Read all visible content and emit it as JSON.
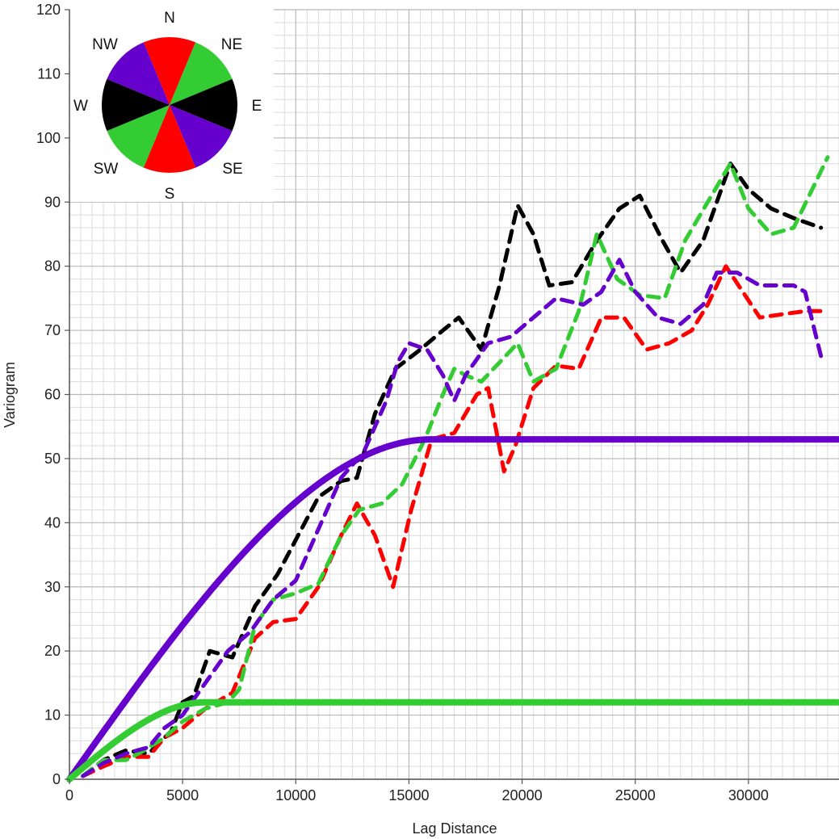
{
  "chart_data": {
    "type": "line",
    "xlabel": "Lag Distance",
    "ylabel": "Variogram",
    "xlim": [
      0,
      34000
    ],
    "ylim": [
      0,
      120
    ],
    "x_ticks": [
      "0",
      "5000",
      "10000",
      "15000",
      "20000",
      "25000",
      "30000"
    ],
    "y_ticks": [
      "0",
      "10",
      "20",
      "30",
      "40",
      "50",
      "60",
      "70",
      "80",
      "90",
      "100",
      "110",
      "120"
    ],
    "grid": true,
    "colors": {
      "black": "#000000",
      "red": "#ff0000",
      "green": "#33cc33",
      "purple": "#6600cc"
    },
    "compass": {
      "placement": "top-left",
      "labels": {
        "N": "N",
        "NE": "NE",
        "E": "E",
        "SE": "SE",
        "S": "S",
        "SW": "SW",
        "W": "W",
        "NW": "NW"
      }
    },
    "experimental_series": [
      {
        "direction": "E-W",
        "color": "#000000",
        "style": "dashed",
        "x": [
          600,
          1500,
          2500,
          3500,
          4500,
          5000,
          5500,
          6200,
          7200,
          8200,
          9200,
          10100,
          11000,
          12000,
          12700,
          13500,
          14400,
          15500,
          16500,
          17200,
          18200,
          19000,
          19800,
          20500,
          21200,
          22200,
          23300,
          24300,
          25200,
          26200,
          27000,
          28000,
          29200,
          30000,
          31000,
          32000,
          33200
        ],
        "y": [
          0.5,
          3,
          4.5,
          4,
          7.5,
          12,
          13,
          20,
          19,
          27,
          32,
          38,
          44,
          46.5,
          47,
          57,
          64,
          67,
          70,
          72,
          67,
          77,
          89.5,
          85,
          77,
          77.5,
          84,
          89,
          91,
          84,
          79,
          84,
          96,
          92,
          89,
          87.5,
          86
        ]
      },
      {
        "direction": "N-S",
        "color": "#ff0000",
        "style": "dashed",
        "x": [
          600,
          1500,
          2500,
          3500,
          4200,
          5000,
          6000,
          7200,
          8200,
          9000,
          10000,
          11000,
          12000,
          12700,
          13500,
          14300,
          15100,
          16000,
          17000,
          18000,
          18500,
          19200,
          19700,
          20500,
          21500,
          22500,
          23500,
          24500,
          25500,
          26500,
          27500,
          28200,
          29000,
          30500,
          31500,
          32500,
          33200
        ],
        "y": [
          0.5,
          2,
          3.5,
          3.5,
          6.5,
          8,
          11,
          13.5,
          22,
          24.5,
          25,
          30,
          38,
          43,
          38,
          30,
          42,
          53,
          54,
          60,
          61,
          48,
          52,
          61,
          64.5,
          64,
          72,
          72,
          67,
          68,
          70,
          74,
          80,
          72,
          72.5,
          73,
          73
        ]
      },
      {
        "direction": "NE-SW",
        "color": "#33cc33",
        "style": "dashed",
        "x": [
          600,
          1500,
          2500,
          3300,
          4200,
          5000,
          6000,
          7000,
          7500,
          8200,
          9000,
          10000,
          11000,
          12000,
          12800,
          13800,
          14700,
          15700,
          16500,
          17000,
          17500,
          18200,
          19000,
          19800,
          20500,
          21500,
          22500,
          23300,
          24200,
          25200,
          26300,
          27200,
          28200,
          29200,
          30000,
          31000,
          32000,
          33500
        ],
        "y": [
          0.5,
          3,
          3,
          4.5,
          6.5,
          9,
          11,
          12,
          14,
          24,
          28,
          29,
          30.5,
          38,
          42,
          43,
          46,
          53,
          60,
          64,
          63,
          62,
          65,
          68,
          62,
          64,
          73,
          85,
          78,
          75.5,
          75,
          84,
          90,
          96,
          89,
          85,
          86,
          97
        ]
      },
      {
        "direction": "NW-SE",
        "color": "#6600cc",
        "style": "dashed",
        "x": [
          600,
          1500,
          2500,
          3500,
          4200,
          5000,
          6000,
          7000,
          8000,
          9000,
          10000,
          11000,
          12000,
          13000,
          14000,
          14500,
          15000,
          15800,
          16500,
          17000,
          17500,
          18500,
          19500,
          20500,
          21500,
          22700,
          23500,
          24300,
          25000,
          26000,
          27000,
          28000,
          28600,
          29500,
          30500,
          32000,
          32500,
          33200
        ],
        "y": [
          0.5,
          2.5,
          4,
          5,
          8,
          10,
          15,
          20,
          23,
          28,
          31,
          39,
          47,
          51,
          59,
          65,
          68,
          67,
          63,
          59,
          63,
          68,
          69,
          72,
          75,
          74,
          76,
          81,
          76,
          72,
          71,
          74,
          79,
          79,
          77,
          77,
          76,
          66
        ]
      }
    ],
    "model_series": [
      {
        "direction": "major",
        "model": "spherical",
        "color": "#6600cc",
        "style": "solid",
        "sill": 53,
        "range": 16000
      },
      {
        "direction": "minor",
        "model": "spherical",
        "color": "#33cc33",
        "style": "solid",
        "sill": 12,
        "range": 6000
      }
    ]
  }
}
